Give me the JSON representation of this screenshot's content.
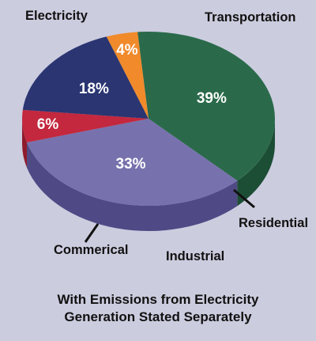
{
  "chart_data": {
    "type": "pie",
    "style": "3d",
    "categories": [
      "Electricity",
      "Transportation",
      "Residential",
      "Industrial",
      "Commerical"
    ],
    "values": [
      39,
      33,
      6,
      18,
      4
    ],
    "value_labels": [
      "39%",
      "33%",
      "6%",
      "18%",
      "4%"
    ],
    "colors": [
      "#2a6a4a",
      "#7772ad",
      "#c3283e",
      "#2a3572",
      "#f08a2b"
    ],
    "side_colors": [
      "#1c4d35",
      "#4f4a85",
      "#8e1c2c",
      "#1b2450",
      "#bd6416"
    ],
    "caption_lines": [
      "With Emissions from Electricity",
      "Generation Stated Separately"
    ]
  }
}
